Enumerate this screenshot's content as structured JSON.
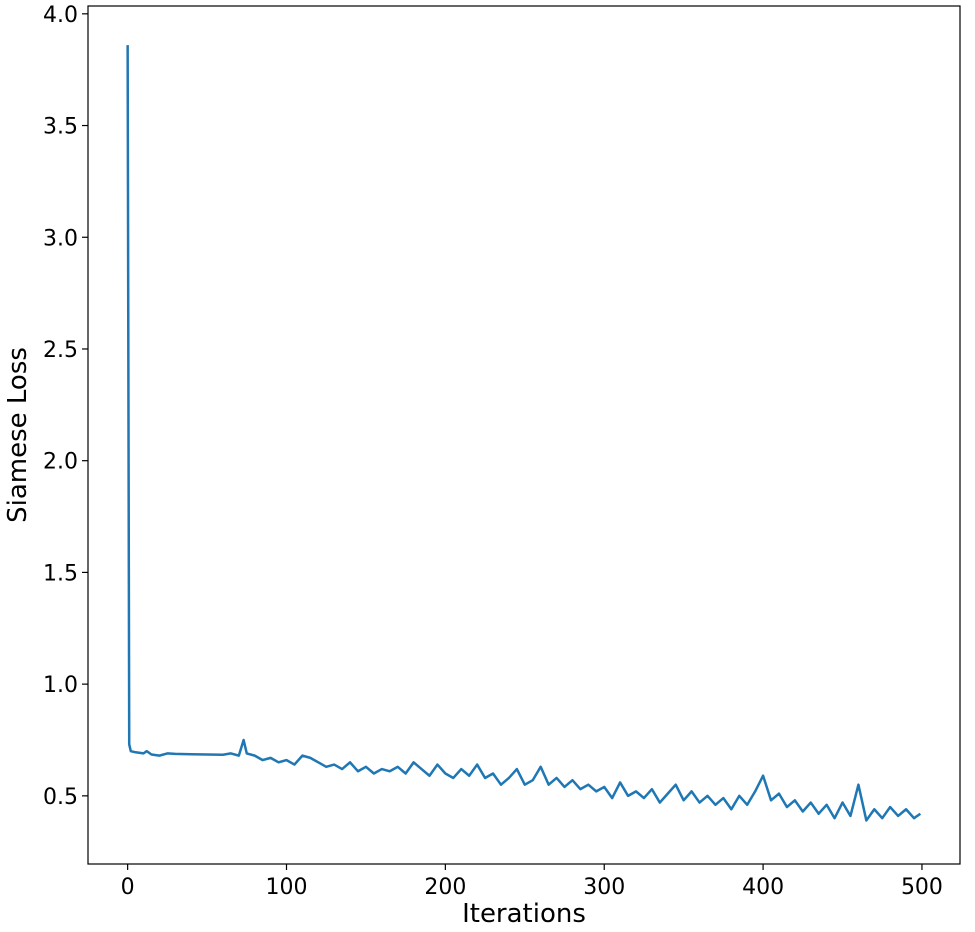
{
  "chart_data": {
    "type": "line",
    "xlabel": "Iterations",
    "ylabel": "Siamese Loss",
    "x": [
      0,
      1,
      2,
      5,
      10,
      12,
      15,
      20,
      25,
      30,
      40,
      50,
      60,
      65,
      70,
      73,
      75,
      80,
      85,
      90,
      95,
      100,
      105,
      110,
      115,
      120,
      125,
      130,
      135,
      140,
      145,
      150,
      155,
      160,
      165,
      170,
      175,
      180,
      185,
      190,
      195,
      200,
      205,
      210,
      215,
      220,
      225,
      230,
      235,
      240,
      245,
      250,
      255,
      260,
      265,
      270,
      275,
      280,
      285,
      290,
      295,
      300,
      305,
      310,
      315,
      320,
      325,
      330,
      335,
      340,
      345,
      350,
      355,
      360,
      365,
      370,
      375,
      380,
      385,
      390,
      395,
      400,
      405,
      410,
      415,
      420,
      425,
      430,
      435,
      440,
      445,
      450,
      455,
      460,
      465,
      470,
      475,
      480,
      485,
      490,
      495,
      499
    ],
    "values": [
      3.86,
      0.73,
      0.7,
      0.695,
      0.69,
      0.7,
      0.685,
      0.68,
      0.69,
      0.688,
      0.686,
      0.685,
      0.684,
      0.69,
      0.68,
      0.75,
      0.69,
      0.68,
      0.66,
      0.67,
      0.65,
      0.66,
      0.64,
      0.68,
      0.67,
      0.65,
      0.63,
      0.64,
      0.62,
      0.65,
      0.61,
      0.63,
      0.6,
      0.62,
      0.61,
      0.63,
      0.6,
      0.65,
      0.62,
      0.59,
      0.64,
      0.6,
      0.58,
      0.62,
      0.59,
      0.64,
      0.58,
      0.6,
      0.55,
      0.58,
      0.62,
      0.55,
      0.57,
      0.63,
      0.55,
      0.58,
      0.54,
      0.57,
      0.53,
      0.55,
      0.52,
      0.54,
      0.49,
      0.56,
      0.5,
      0.52,
      0.49,
      0.53,
      0.47,
      0.51,
      0.55,
      0.48,
      0.52,
      0.47,
      0.5,
      0.46,
      0.49,
      0.44,
      0.5,
      0.46,
      0.52,
      0.59,
      0.48,
      0.51,
      0.45,
      0.48,
      0.43,
      0.47,
      0.42,
      0.46,
      0.4,
      0.47,
      0.41,
      0.55,
      0.39,
      0.44,
      0.4,
      0.45,
      0.41,
      0.44,
      0.4,
      0.42
    ],
    "color": "#1f77b4",
    "xlim": [
      -24.95,
      523.95
    ],
    "xticks": [
      0,
      100,
      200,
      300,
      400,
      500
    ],
    "ylim": [
      0.195,
      4.035
    ],
    "yticks": [
      0.5,
      {
        "value": 1,
        "label": "1.0"
      },
      1.5,
      {
        "value": 2,
        "label": "2.0"
      },
      2.5,
      {
        "value": 3,
        "label": "3.0"
      },
      3.5,
      {
        "value": 4,
        "label": "4.0"
      }
    ]
  }
}
